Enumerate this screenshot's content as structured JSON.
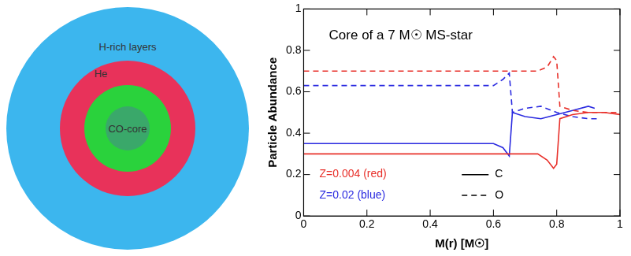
{
  "diagram": {
    "layers": [
      {
        "label": "H-rich layers"
      },
      {
        "label": "He"
      },
      {
        "label": "CO-core"
      }
    ]
  },
  "chart_data": {
    "type": "line",
    "title": "Core of a 7 M☉ MS-star",
    "x_label": "M(r) [M☉]",
    "y_label": "Particle Abundance",
    "xlim": [
      0,
      1
    ],
    "xticks": [
      0,
      0.2,
      0.4,
      0.6,
      0.8,
      1
    ],
    "ylim": [
      0,
      1
    ],
    "yticks": [
      0,
      0.2,
      0.4,
      0.6,
      0.8,
      1
    ],
    "grid": false,
    "series": [
      {
        "name": "C",
        "group": "Z=0.004 (red)",
        "color": "#e8302a",
        "line_style": "solid",
        "x": [
          0,
          0.74,
          0.77,
          0.79,
          0.8,
          0.81,
          0.85,
          0.9,
          0.95,
          1
        ],
        "values": [
          0.3,
          0.3,
          0.27,
          0.23,
          0.25,
          0.47,
          0.49,
          0.5,
          0.5,
          0.49
        ]
      },
      {
        "name": "O",
        "group": "Z=0.004 (red)",
        "color": "#e8302a",
        "line_style": "dashed",
        "x": [
          0,
          0.74,
          0.77,
          0.79,
          0.8,
          0.81,
          0.85,
          0.9,
          0.95,
          1
        ],
        "values": [
          0.7,
          0.7,
          0.72,
          0.77,
          0.75,
          0.53,
          0.51,
          0.5,
          0.5,
          0.5
        ]
      },
      {
        "name": "C",
        "group": "Z=0.02 (blue)",
        "color": "#2a2ae0",
        "line_style": "solid",
        "x": [
          0,
          0.6,
          0.63,
          0.65,
          0.66,
          0.7,
          0.75,
          0.8,
          0.85,
          0.9,
          0.92
        ],
        "values": [
          0.35,
          0.35,
          0.33,
          0.29,
          0.5,
          0.48,
          0.47,
          0.49,
          0.51,
          0.53,
          0.52
        ]
      },
      {
        "name": "O",
        "group": "Z=0.02 (blue)",
        "color": "#2a2ae0",
        "line_style": "dashed",
        "x": [
          0,
          0.6,
          0.63,
          0.65,
          0.66,
          0.7,
          0.75,
          0.8,
          0.85,
          0.9,
          0.93
        ],
        "values": [
          0.63,
          0.63,
          0.66,
          0.69,
          0.5,
          0.52,
          0.53,
          0.5,
          0.48,
          0.47,
          0.47
        ]
      }
    ]
  }
}
